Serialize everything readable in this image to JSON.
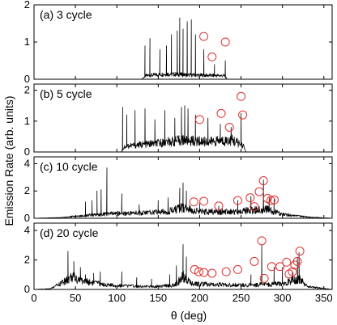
{
  "chart_data": {
    "type": "line",
    "xlabel": "θ (deg)",
    "ylabel": "Emission Rate (arb. units)",
    "xlim": [
      0,
      360
    ],
    "xticks": [
      0,
      50,
      100,
      150,
      200,
      250,
      300,
      350
    ],
    "colors": {
      "trace": "#000000",
      "markers": "#e03030"
    },
    "panels": [
      {
        "label": "(a) 3 cycle",
        "ylim": [
          0,
          2
        ],
        "yticks": [
          0,
          1,
          2
        ],
        "baseline": [
          [
            130,
            0.0
          ],
          [
            135,
            0.1
          ],
          [
            160,
            0.15
          ],
          [
            185,
            0.12
          ],
          [
            230,
            0.1
          ],
          [
            233,
            0.0
          ]
        ],
        "peaks": [
          [
            134,
            0.9
          ],
          [
            140,
            1.1
          ],
          [
            152,
            0.8
          ],
          [
            160,
            0.9
          ],
          [
            166,
            1.2
          ],
          [
            173,
            1.3
          ],
          [
            176,
            1.65
          ],
          [
            180,
            1.35
          ],
          [
            185,
            1.55
          ],
          [
            190,
            1.6
          ],
          [
            195,
            1.2
          ],
          [
            205,
            0.8
          ],
          [
            218,
            0.4
          ],
          [
            231,
            0.5
          ]
        ],
        "markers": [
          [
            205,
            1.15
          ],
          [
            215,
            0.6
          ],
          [
            231,
            1.0
          ]
        ]
      },
      {
        "label": "(b) 5 cycle",
        "ylim": [
          0,
          2.2
        ],
        "yticks": [
          0,
          1,
          2
        ],
        "baseline": [
          [
            105,
            0.0
          ],
          [
            110,
            0.2
          ],
          [
            150,
            0.3
          ],
          [
            180,
            0.4
          ],
          [
            210,
            0.35
          ],
          [
            240,
            0.4
          ],
          [
            253,
            0.2
          ],
          [
            256,
            0.0
          ]
        ],
        "peaks": [
          [
            107,
            1.45
          ],
          [
            112,
            1.2
          ],
          [
            122,
            1.35
          ],
          [
            134,
            1.4
          ],
          [
            146,
            1.05
          ],
          [
            158,
            1.35
          ],
          [
            170,
            1.1
          ],
          [
            178,
            1.45
          ],
          [
            182,
            1.5
          ],
          [
            186,
            1.4
          ],
          [
            195,
            1.2
          ],
          [
            210,
            1.1
          ],
          [
            225,
            0.9
          ],
          [
            238,
            0.8
          ],
          [
            250,
            1.25
          ]
        ],
        "markers": [
          [
            200,
            1.05
          ],
          [
            226,
            1.25
          ],
          [
            236,
            0.8
          ],
          [
            250,
            1.8
          ],
          [
            252,
            1.2
          ]
        ]
      },
      {
        "label": "(c) 10 cycle",
        "ylim": [
          0,
          4.5
        ],
        "yticks": [
          0,
          2,
          4
        ],
        "baseline": [
          [
            0,
            0.0
          ],
          [
            30,
            0.05
          ],
          [
            60,
            0.2
          ],
          [
            90,
            0.35
          ],
          [
            120,
            0.4
          ],
          [
            160,
            0.5
          ],
          [
            180,
            0.8
          ],
          [
            200,
            0.5
          ],
          [
            240,
            0.5
          ],
          [
            280,
            0.7
          ],
          [
            300,
            0.3
          ],
          [
            330,
            0.1
          ],
          [
            360,
            0.0
          ]
        ],
        "peaks": [
          [
            62,
            1.2
          ],
          [
            70,
            1.3
          ],
          [
            76,
            2.0
          ],
          [
            81,
            2.1
          ],
          [
            88,
            3.7
          ],
          [
            106,
            1.8
          ],
          [
            127,
            1.0
          ],
          [
            150,
            1.3
          ],
          [
            162,
            1.5
          ],
          [
            176,
            2.2
          ],
          [
            180,
            2.6
          ],
          [
            184,
            2.0
          ],
          [
            200,
            1.1
          ],
          [
            223,
            0.9
          ],
          [
            246,
            1.3
          ],
          [
            262,
            1.6
          ],
          [
            277,
            2.8
          ],
          [
            284,
            1.5
          ],
          [
            290,
            1.4
          ]
        ],
        "markers": [
          [
            193,
            1.2
          ],
          [
            205,
            1.25
          ],
          [
            223,
            0.9
          ],
          [
            246,
            1.3
          ],
          [
            261,
            1.5
          ],
          [
            266,
            0.85
          ],
          [
            272,
            1.95
          ],
          [
            277,
            2.75
          ],
          [
            282,
            1.45
          ],
          [
            286,
            1.3
          ],
          [
            290,
            1.35
          ]
        ]
      },
      {
        "label": "(d) 20 cycle",
        "ylim": [
          0,
          4.5
        ],
        "yticks": [
          0,
          2,
          4
        ],
        "baseline": [
          [
            0,
            0.0
          ],
          [
            20,
            0.05
          ],
          [
            38,
            0.6
          ],
          [
            45,
            0.9
          ],
          [
            60,
            0.6
          ],
          [
            90,
            0.3
          ],
          [
            140,
            0.2
          ],
          [
            170,
            0.3
          ],
          [
            180,
            0.9
          ],
          [
            190,
            0.4
          ],
          [
            250,
            0.3
          ],
          [
            300,
            0.4
          ],
          [
            320,
            0.8
          ],
          [
            330,
            0.2
          ],
          [
            360,
            0.0
          ]
        ],
        "peaks": [
          [
            41,
            2.6
          ],
          [
            48,
            1.9
          ],
          [
            56,
            1.5
          ],
          [
            62,
            1.0
          ],
          [
            72,
            1.1
          ],
          [
            80,
            1.2
          ],
          [
            106,
            1.2
          ],
          [
            124,
            0.8
          ],
          [
            142,
            0.7
          ],
          [
            164,
            1.0
          ],
          [
            172,
            1.6
          ],
          [
            180,
            3.05
          ],
          [
            184,
            2.2
          ],
          [
            262,
            1.0
          ],
          [
            275,
            3.0
          ],
          [
            290,
            1.5
          ],
          [
            300,
            1.5
          ],
          [
            312,
            1.2
          ],
          [
            318,
            2.2
          ],
          [
            320,
            2.5
          ]
        ],
        "markers": [
          [
            194,
            1.35
          ],
          [
            199,
            1.2
          ],
          [
            205,
            1.15
          ],
          [
            215,
            1.1
          ],
          [
            232,
            1.2
          ],
          [
            246,
            1.35
          ],
          [
            266,
            1.9
          ],
          [
            275,
            3.3
          ],
          [
            278,
            0.75
          ],
          [
            287,
            1.55
          ],
          [
            297,
            1.55
          ],
          [
            305,
            1.85
          ],
          [
            308,
            1.05
          ],
          [
            312,
            1.2
          ],
          [
            315,
            1.65
          ],
          [
            318,
            1.9
          ],
          [
            321,
            2.6
          ]
        ]
      }
    ]
  }
}
